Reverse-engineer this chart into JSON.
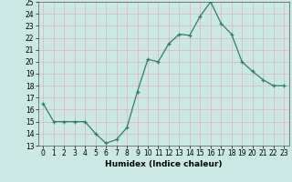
{
  "x": [
    0,
    1,
    2,
    3,
    4,
    5,
    6,
    7,
    8,
    9,
    10,
    11,
    12,
    13,
    14,
    15,
    16,
    17,
    18,
    19,
    20,
    21,
    22,
    23
  ],
  "y": [
    16.5,
    15.0,
    15.0,
    15.0,
    15.0,
    14.0,
    13.2,
    13.5,
    14.5,
    17.5,
    20.2,
    20.0,
    21.5,
    22.3,
    22.2,
    23.8,
    25.0,
    23.2,
    22.3,
    20.0,
    19.2,
    18.5,
    18.0,
    18.0
  ],
  "bg_color": "#cbe8e4",
  "grid_color": "#dbbcbc",
  "line_color": "#2e7d6e",
  "marker_color": "#2e7d6e",
  "xlabel": "Humidex (Indice chaleur)",
  "ylim": [
    13,
    25
  ],
  "xlim": [
    -0.5,
    23.5
  ],
  "yticks": [
    13,
    14,
    15,
    16,
    17,
    18,
    19,
    20,
    21,
    22,
    23,
    24,
    25
  ],
  "xticks": [
    0,
    1,
    2,
    3,
    4,
    5,
    6,
    7,
    8,
    9,
    10,
    11,
    12,
    13,
    14,
    15,
    16,
    17,
    18,
    19,
    20,
    21,
    22,
    23
  ],
  "xtick_labels": [
    "0",
    "1",
    "2",
    "3",
    "4",
    "5",
    "6",
    "7",
    "8",
    "9",
    "10",
    "11",
    "12",
    "13",
    "14",
    "15",
    "16",
    "17",
    "18",
    "19",
    "20",
    "21",
    "22",
    "23"
  ],
  "label_fontsize": 6.5,
  "tick_fontsize": 5.5
}
